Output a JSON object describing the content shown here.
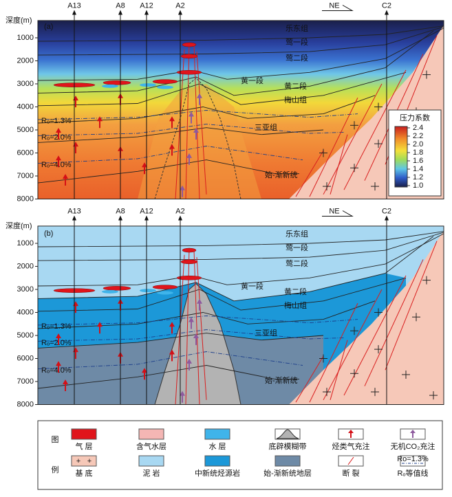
{
  "axis": {
    "label": "深度(m)",
    "ticks": [
      "1000",
      "2000",
      "3000",
      "4000",
      "5000",
      "6000",
      "7000",
      "8000"
    ]
  },
  "wells": [
    "A13",
    "A8",
    "A12",
    "A2",
    "C2"
  ],
  "direction": "NE",
  "panels": [
    {
      "label": "(a)",
      "formations": [
        "乐东组",
        "莺一段",
        "莺二段",
        "黄一段",
        "黄二段",
        "梅山组",
        "三亚组",
        "始-渐新统"
      ],
      "ro": [
        "Rₒ=1.3%",
        "Rₒ=2.0%",
        "Rₒ=4.0%"
      ]
    },
    {
      "label": "(b)",
      "formations": [
        "乐东组",
        "莺一段",
        "莺二段",
        "黄一段",
        "黄二段",
        "梅山组",
        "三亚组",
        "始-渐新统"
      ],
      "ro": [
        "Rₒ=1.3%",
        "Rₒ=2.0%",
        "Rₒ=4.0%"
      ]
    }
  ],
  "colorbar": {
    "title": "压力系数",
    "ticks": [
      "2.4",
      "2.2",
      "2.0",
      "1.8",
      "1.6",
      "1.4",
      "1.2",
      "1.0"
    ]
  },
  "legend": {
    "title": [
      "图",
      "例"
    ],
    "isoline_sample": "Ro=1.3%",
    "items": [
      "气 层",
      "含气水层",
      "水 层",
      "底辟模糊带",
      "烃类气充注",
      "无机CO₂充注",
      "基 底",
      "泥 岩",
      "中新统烃源岩",
      "始-渐新统地层",
      "断 裂",
      "Rₒ等值线"
    ]
  }
}
